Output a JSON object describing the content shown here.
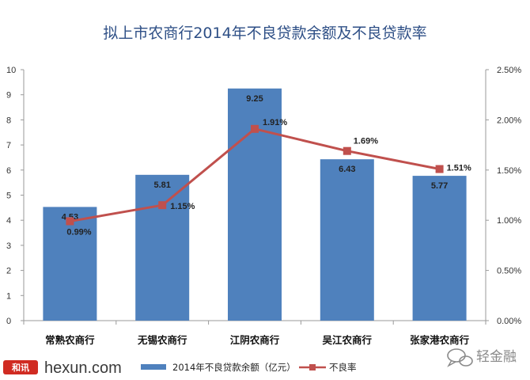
{
  "chart_data": {
    "type": "bar",
    "title": "拟上市农商行2014年不良贷款余额及不良贷款率",
    "categories": [
      "常熟农商行",
      "无锡农商行",
      "江阴农商行",
      "吴江农商行",
      "张家港农商行"
    ],
    "series": [
      {
        "name": "2014年不良贷款余额（亿元）",
        "type": "bar",
        "axis": "left",
        "values": [
          4.53,
          5.81,
          9.25,
          6.43,
          5.77
        ],
        "labels": [
          "4.53",
          "5.81",
          "9.25",
          "6.43",
          "5.77"
        ],
        "color": "#4f81bd"
      },
      {
        "name": "不良率",
        "type": "line",
        "axis": "right",
        "values": [
          0.99,
          1.15,
          1.91,
          1.69,
          1.51
        ],
        "labels": [
          "0.99%",
          "1.15%",
          "1.91%",
          "1.69%",
          "1.51%"
        ],
        "color": "#c0504d"
      }
    ],
    "y_left": {
      "ylim": [
        0,
        10
      ],
      "ticks": [
        "0",
        "1",
        "2",
        "3",
        "4",
        "5",
        "6",
        "7",
        "8",
        "9",
        "10"
      ]
    },
    "y_right": {
      "ylim": [
        0,
        2.5
      ],
      "ticks": [
        "0.00%",
        "0.50%",
        "1.00%",
        "1.50%",
        "2.00%",
        "2.50%"
      ]
    },
    "grid": false,
    "legend_position": "bottom"
  },
  "footer": {
    "brand": "hexun.com",
    "brand_logo_text": "和讯",
    "watermark": "轻金融"
  },
  "colors": {
    "title": "#2e4f86",
    "bar": "#4f81bd",
    "line": "#c0504d",
    "brand_red": "#d02b22"
  }
}
